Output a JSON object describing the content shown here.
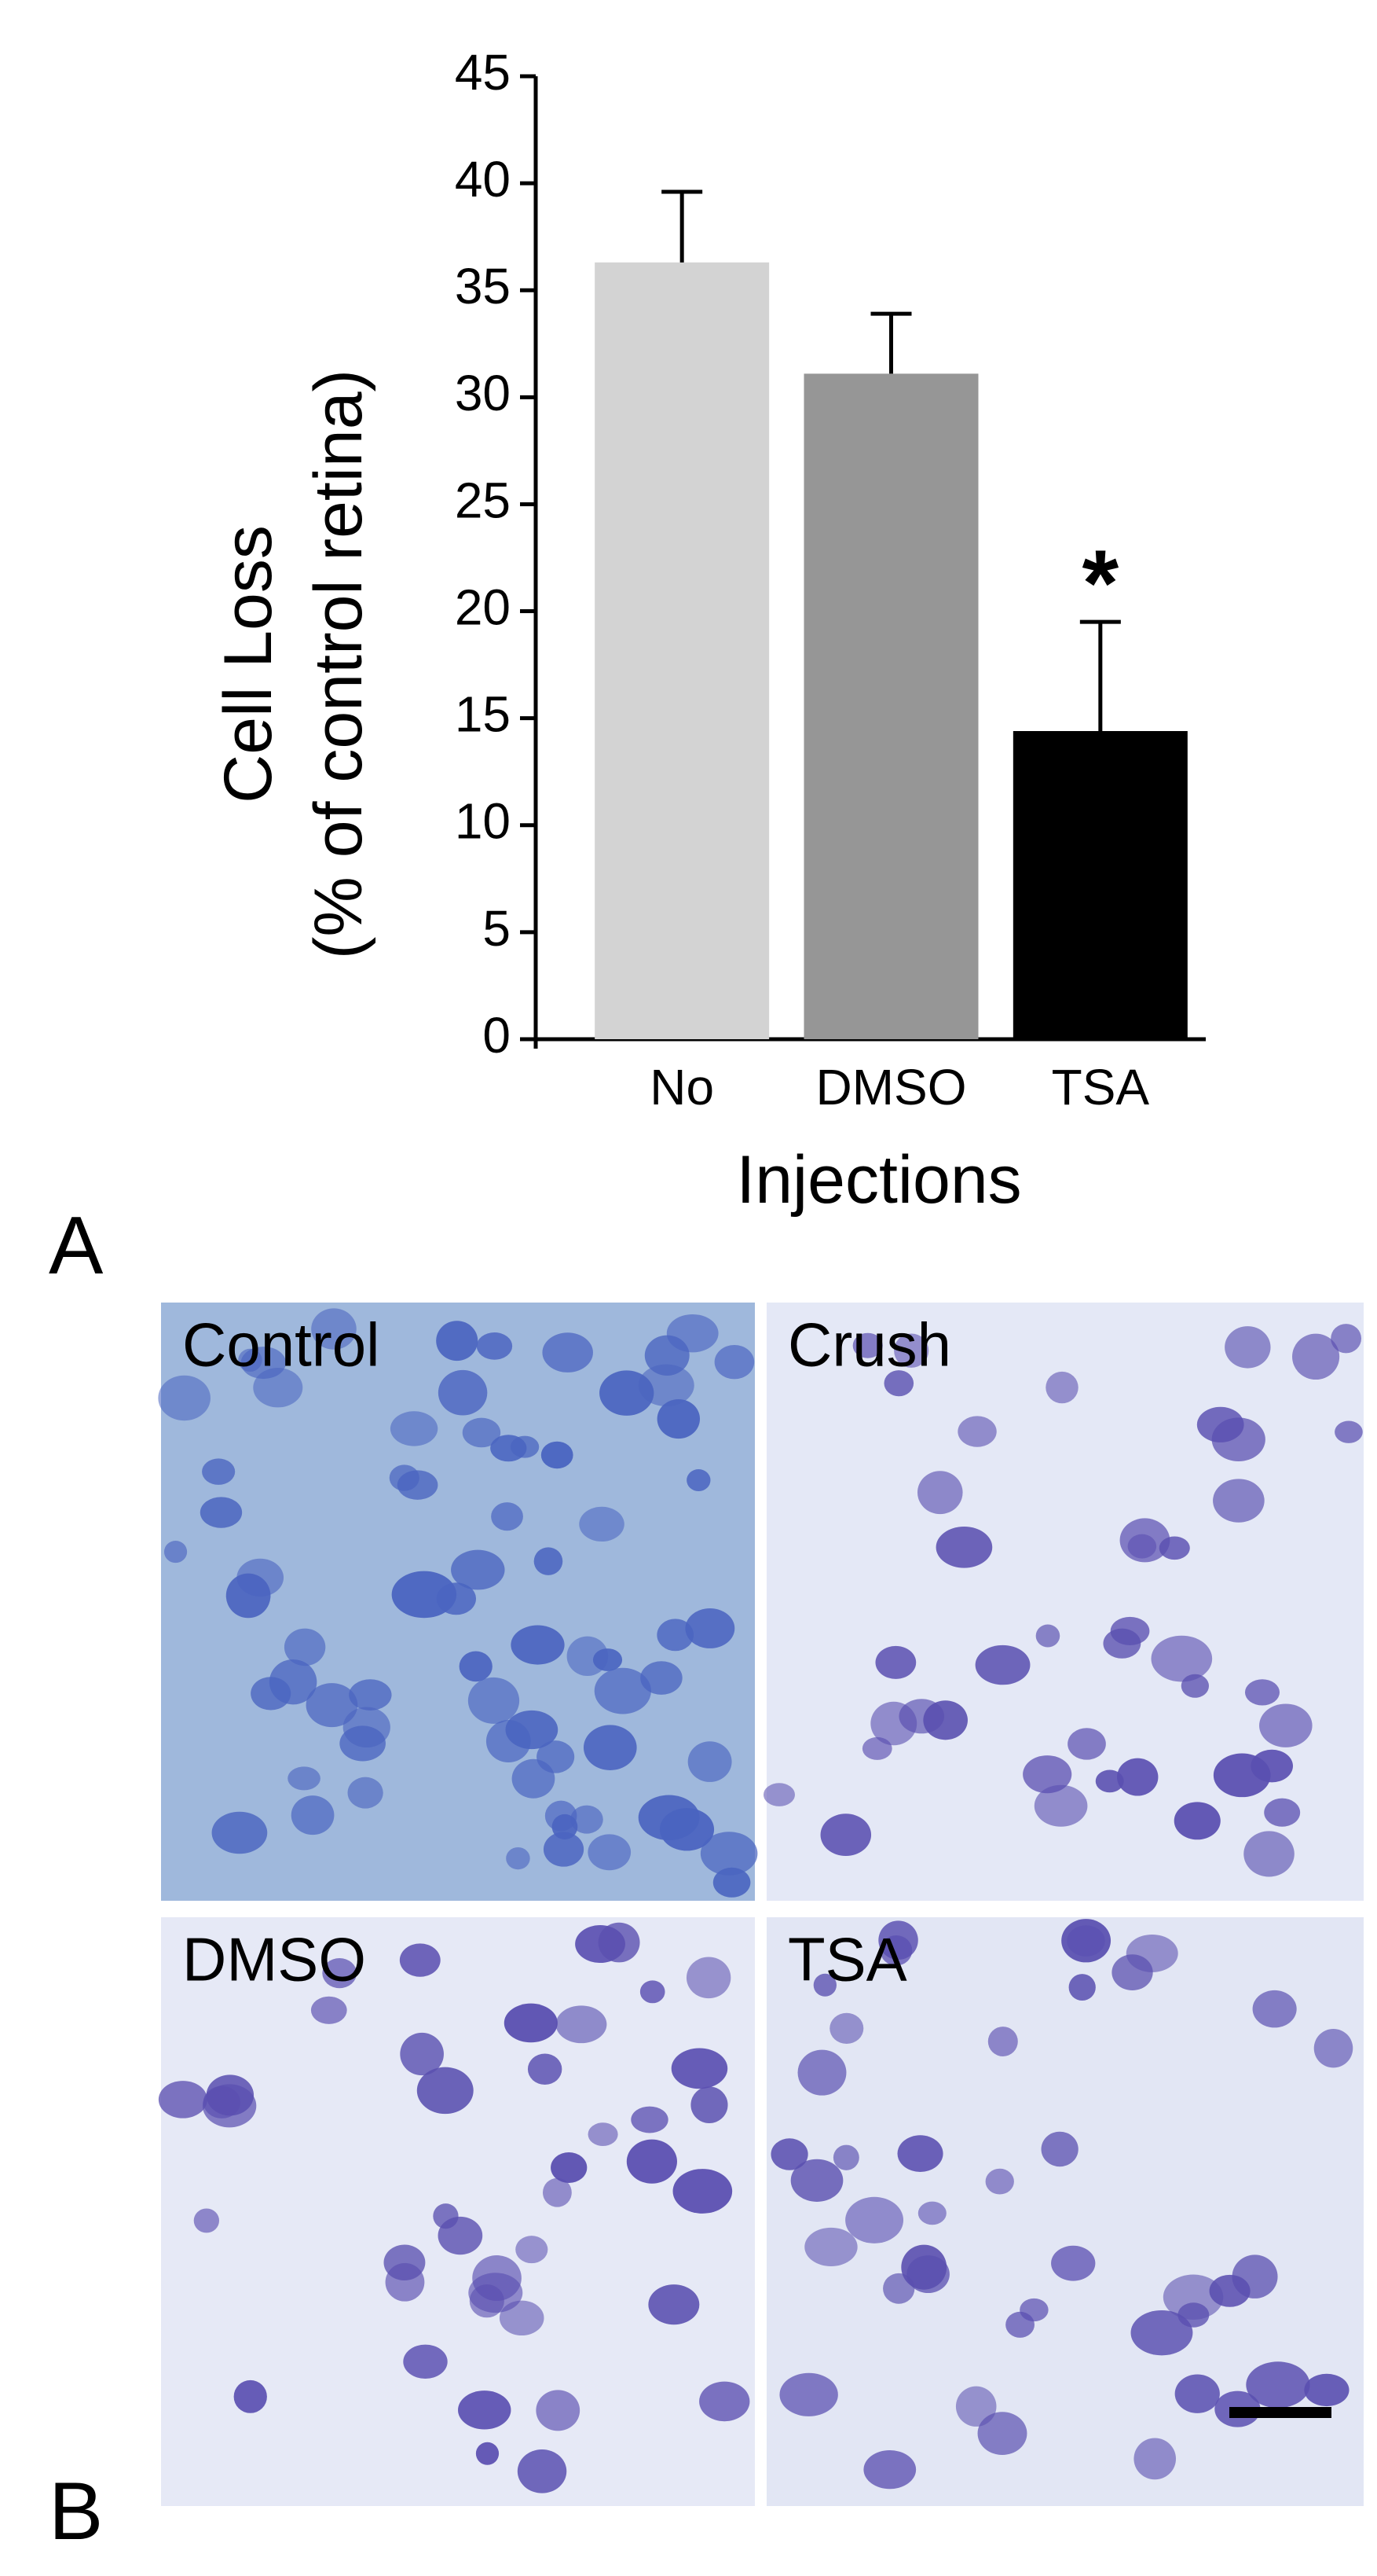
{
  "chart_data": {
    "type": "bar",
    "ylabel": [
      "Cell Loss",
      "(% of control retina)"
    ],
    "xlabel": "Injections",
    "categories": [
      "No",
      "DMSO",
      "TSA"
    ],
    "values": [
      36.3,
      31.1,
      14.4
    ],
    "errors": [
      3.3,
      2.8,
      5.1
    ],
    "colors": [
      "#d3d3d3",
      "#969696",
      "#000000"
    ],
    "ylim": [
      0,
      45
    ],
    "yticks": [
      0,
      5,
      10,
      15,
      20,
      25,
      30,
      35,
      40,
      45
    ],
    "annotations": [
      {
        "text": "*",
        "category": 2
      }
    ]
  },
  "figure": {
    "panel_labels": [
      "A",
      "B"
    ],
    "micrographs": [
      {
        "label": "Control"
      },
      {
        "label": "Crush"
      },
      {
        "label": "DMSO"
      },
      {
        "label": "TSA"
      }
    ]
  }
}
